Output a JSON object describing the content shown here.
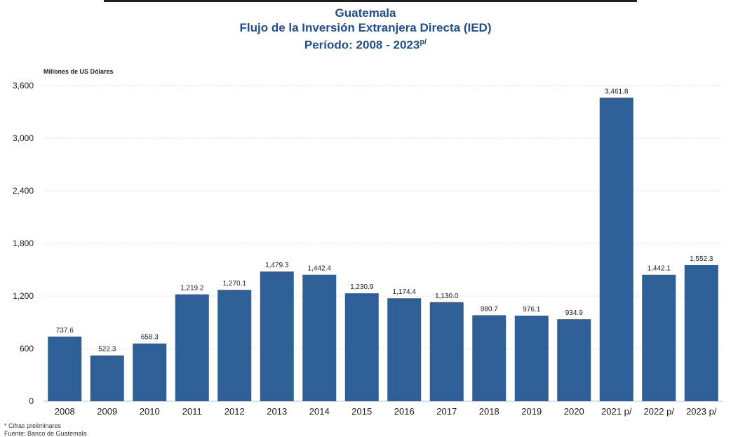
{
  "title": {
    "line1": "Guatemala",
    "line2": "Flujo de la Inversión Extranjera Directa (IED)",
    "line3": "Período: 2008 - 2023",
    "line3_sup": "p/"
  },
  "footnotes": {
    "note": "* Cifras preliminares",
    "source": "Fuente: Banco de Guatemala"
  },
  "chart_data": {
    "type": "bar",
    "ylabel": "Millones de US Dólares",
    "ylim": [
      0,
      3600
    ],
    "yticks": [
      0,
      600,
      1200,
      1800,
      2400,
      3000,
      3600
    ],
    "ytick_labels": [
      "0",
      "600",
      "1,200",
      "1,800",
      "2,400",
      "3,000",
      "3,600"
    ],
    "grid": true,
    "categories": [
      "2008",
      "2009",
      "2010",
      "2011",
      "2012",
      "2013",
      "2014",
      "2015",
      "2016",
      "2017",
      "2018",
      "2019",
      "2020",
      "2021 p/",
      "2022 p/",
      "2023 p/"
    ],
    "values": [
      737.6,
      522.3,
      658.3,
      1219.2,
      1270.1,
      1479.3,
      1442.4,
      1230.9,
      1174.4,
      1130.0,
      980.7,
      976.1,
      934.9,
      3461.8,
      1442.1,
      1552.3
    ],
    "value_labels": [
      "737.6",
      "522.3",
      "658.3",
      "1,219.2",
      "1,270.1",
      "1,479.3",
      "1,442.4",
      "1,230.9",
      "1,174.4",
      "1,130.0",
      "980.7",
      "976.1",
      "934.9",
      "3,461.8",
      "1,442.1",
      "1,552.3"
    ],
    "bar_color": "#2f5f97",
    "grid_color": "#d9d9d9",
    "text_color": "#1a1a1a"
  }
}
